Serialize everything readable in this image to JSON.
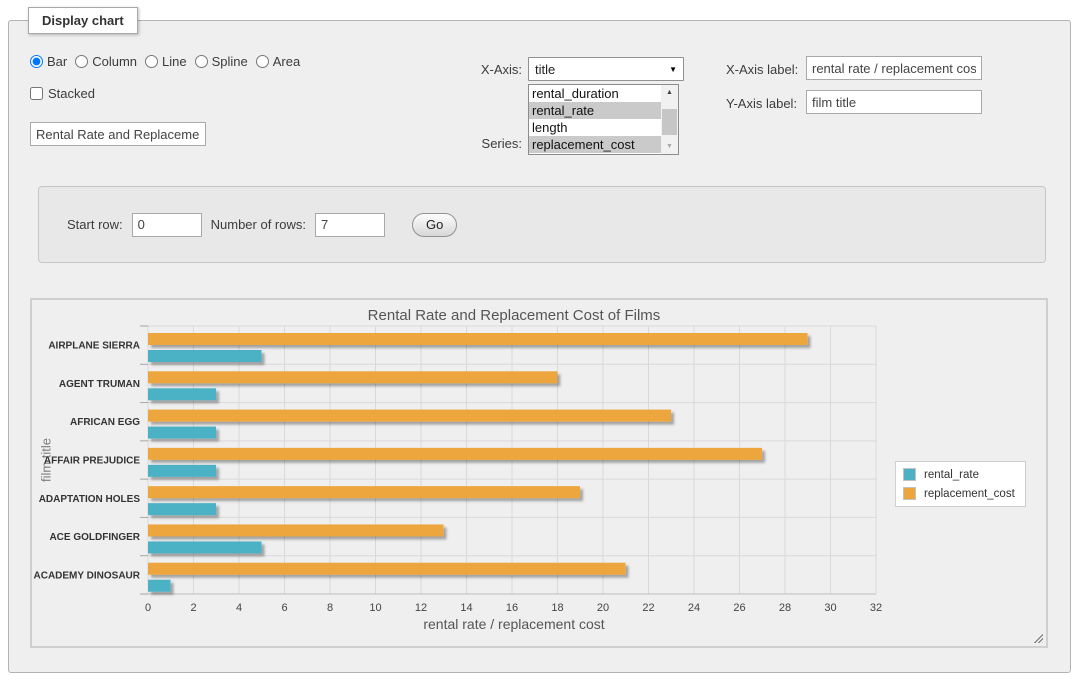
{
  "controls": {
    "legend_title": "Display chart",
    "chart_types": [
      {
        "label": "Bar",
        "checked": true
      },
      {
        "label": "Column",
        "checked": false
      },
      {
        "label": "Line",
        "checked": false
      },
      {
        "label": "Spline",
        "checked": false
      },
      {
        "label": "Area",
        "checked": false
      }
    ],
    "stacked_label": "Stacked",
    "chart_title_value": "Rental Rate and Replacemer",
    "x_axis_label_text": "X-Axis:",
    "x_axis_value": "title",
    "series_label_text": "Series:",
    "series_options": [
      {
        "label": "rental_duration",
        "selected": false
      },
      {
        "label": "rental_rate",
        "selected": true
      },
      {
        "label": "length",
        "selected": false
      },
      {
        "label": "replacement_cost",
        "selected": true
      }
    ],
    "scrollbar": {
      "up_icon": "▲",
      "down_icon": "▼"
    },
    "select_arrow_icon": "▼",
    "x_axis_caption": "X-Axis label:",
    "x_axis_input_value": "rental rate / replacement cost",
    "y_axis_caption": "Y-Axis label:",
    "y_axis_input_value": "film title"
  },
  "rows_panel": {
    "start_row_label": "Start row:",
    "start_row_value": "0",
    "num_rows_label": "Number of rows:",
    "num_rows_value": "7",
    "go_label": "Go"
  },
  "chart_data": {
    "type": "bar",
    "orientation": "horizontal",
    "title": "Rental Rate and Replacement Cost of Films",
    "xlabel": "rental rate / replacement cost",
    "ylabel": "film title",
    "categories": [
      "AIRPLANE SIERRA",
      "AGENT TRUMAN",
      "AFRICAN EGG",
      "AFFAIR PREJUDICE",
      "ADAPTATION HOLES",
      "ACE GOLDFINGER",
      "ACADEMY DINOSAUR"
    ],
    "series": [
      {
        "name": "rental_rate",
        "color": "#4bb1c5",
        "values": [
          4.99,
          2.99,
          2.99,
          2.99,
          2.99,
          4.99,
          0.99
        ]
      },
      {
        "name": "replacement_cost",
        "color": "#eda63c",
        "values": [
          28.99,
          17.99,
          22.99,
          26.99,
          18.99,
          12.99,
          20.99
        ]
      }
    ],
    "xlim": [
      0,
      32
    ],
    "xticks": [
      0,
      2,
      4,
      6,
      8,
      10,
      12,
      14,
      16,
      18,
      20,
      22,
      24,
      26,
      28,
      30,
      32
    ],
    "grid": true,
    "grid_color": "#d9d9d9",
    "plot_background": "#efefef",
    "legend_position": "right"
  }
}
